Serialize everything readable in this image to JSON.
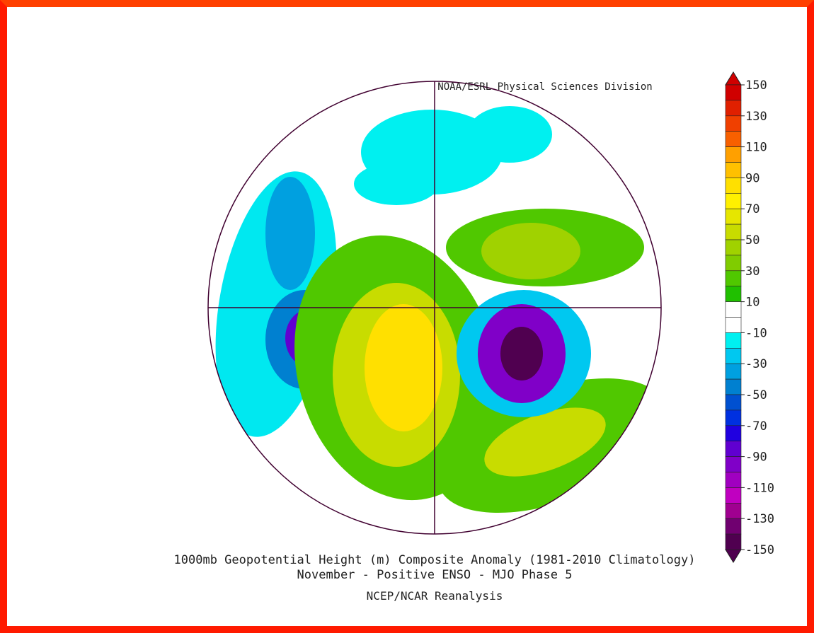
{
  "header": {
    "credit": "NOAA/ESRL Physical Sciences Division"
  },
  "colorbar": {
    "labels": [
      150,
      130,
      110,
      90,
      70,
      50,
      30,
      10,
      -10,
      -30,
      -50,
      -70,
      -90,
      -110,
      -130,
      -150
    ],
    "colors": [
      "#d00000",
      "#e02000",
      "#f04000",
      "#f86000",
      "#ffa000",
      "#ffc000",
      "#ffe000",
      "#fff000",
      "#e6e600",
      "#c8dc00",
      "#a0d200",
      "#80cc00",
      "#50c800",
      "#20c000",
      "#ffffff",
      "#ffffff",
      "#00f0f0",
      "#00c8f0",
      "#00a0e0",
      "#0080d0",
      "#0050d0",
      "#0030e0",
      "#2000e0",
      "#6000d0",
      "#8000c8",
      "#a000c0",
      "#c000c0",
      "#a00090",
      "#700070",
      "#500050"
    ]
  },
  "caption": {
    "title": "1000mb Geopotential Height (m) Composite Anomaly (1981-2010 Climatology)",
    "subtitle": "November - Positive ENSO - MJO Phase 5",
    "source": "NCEP/NCAR Reanalysis"
  }
}
